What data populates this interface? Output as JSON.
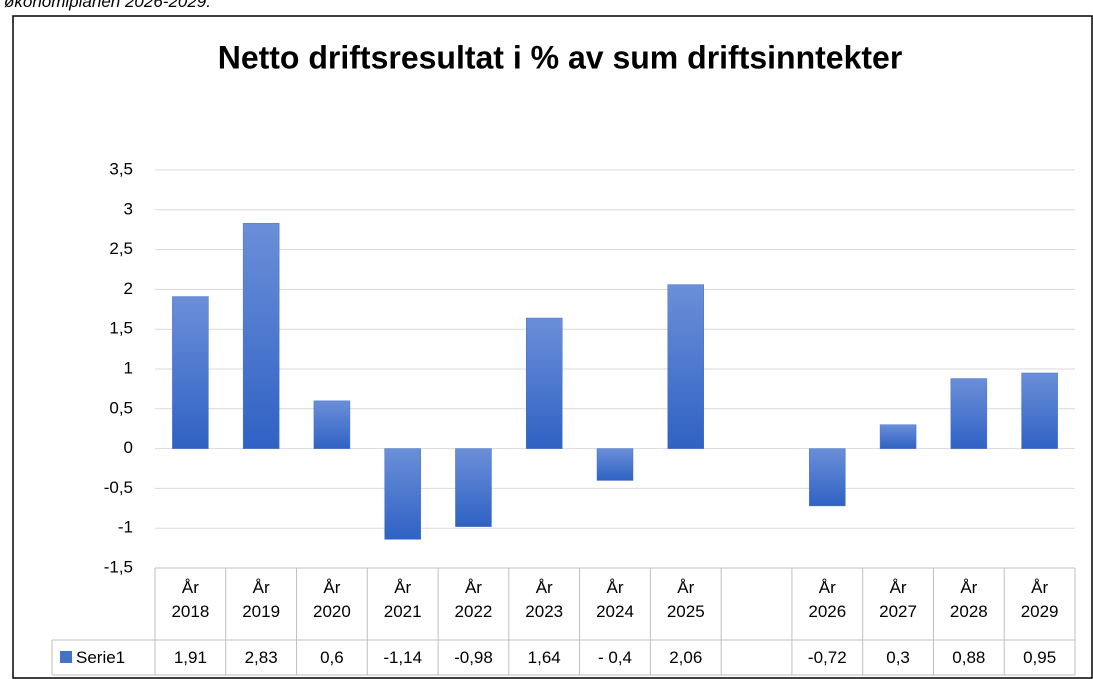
{
  "caption": "økonomiplanen 2026-2029.",
  "chart_data": {
    "type": "bar",
    "title": "Netto driftsresultat i % av sum driftsinntekter",
    "categories": [
      "År 2018",
      "År 2019",
      "År 2020",
      "År 2021",
      "År 2022",
      "År 2023",
      "År 2024",
      "År 2025",
      null,
      "År 2026",
      "År 2027",
      "År 2028",
      "År 2029"
    ],
    "series": [
      {
        "name": "Serie1",
        "color": "#4472c4",
        "values": [
          1.91,
          2.83,
          0.6,
          -1.14,
          -0.98,
          1.64,
          -0.4,
          2.06,
          null,
          -0.72,
          0.3,
          0.88,
          0.95
        ],
        "value_labels": [
          "1,91",
          "2,83",
          "0,6",
          "-1,14",
          "-0,98",
          "1,64",
          "- 0,4",
          "2,06",
          null,
          "-0,72",
          "0,3",
          "0,88",
          "0,95"
        ]
      }
    ],
    "ylim": [
      -1.5,
      3.5
    ],
    "yticks": [
      {
        "value": -1.5,
        "label": "-1,5"
      },
      -1,
      {
        "value": -0.5,
        "label": "-0,5"
      },
      0,
      {
        "value": 0.5,
        "label": "0,5"
      },
      1,
      {
        "value": 1.5,
        "label": "1,5"
      },
      2,
      {
        "value": 2.5,
        "label": "2,5"
      },
      3,
      {
        "value": 3.5,
        "label": "3,5"
      }
    ],
    "grid": true,
    "data_table": true
  }
}
